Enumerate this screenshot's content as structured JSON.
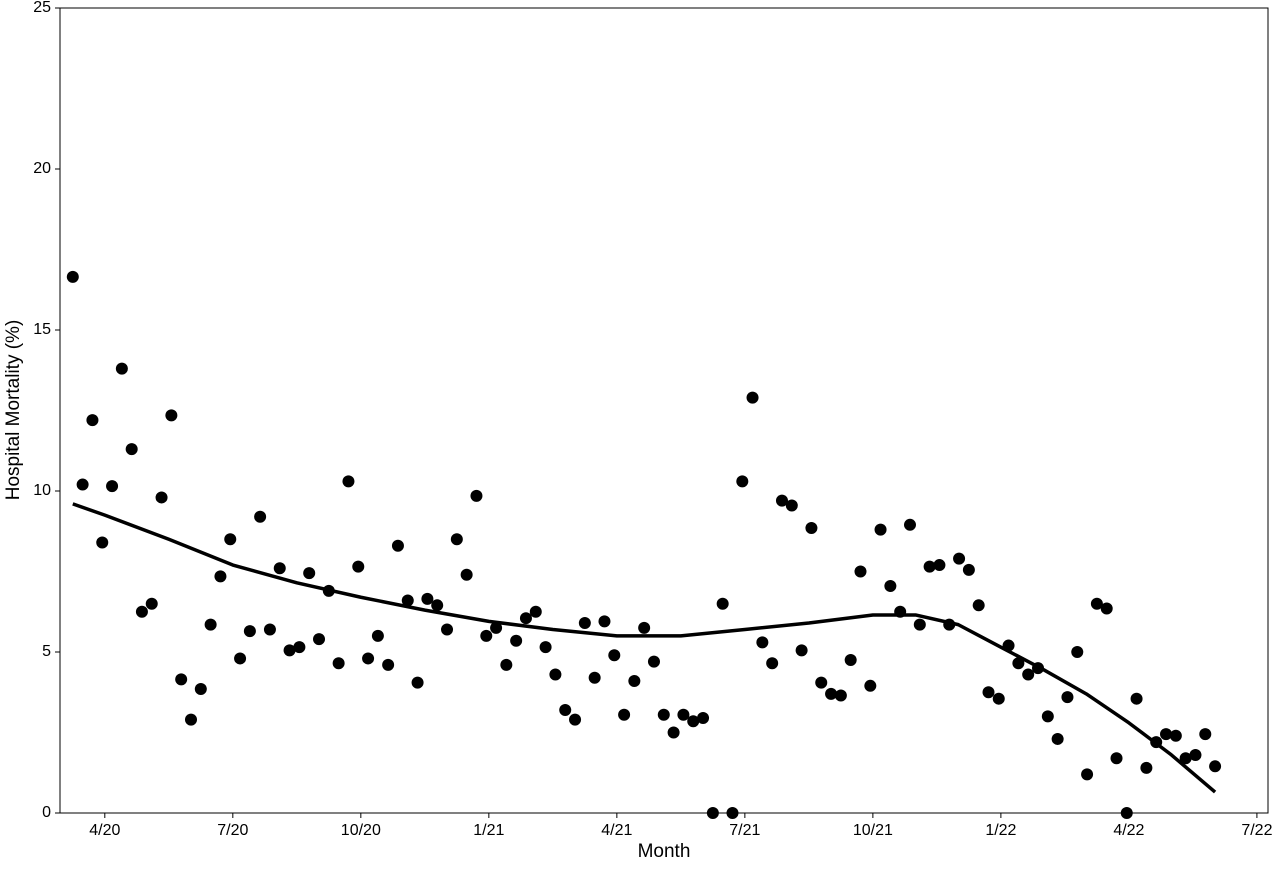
{
  "chart_data": {
    "type": "scatter",
    "xlabel": "Month",
    "ylabel": "Hospital Mortality (%)",
    "xlim": [
      1.95,
      30.26
    ],
    "ylim": [
      0,
      25
    ],
    "xticks": [
      {
        "value": 3,
        "label": "4/20"
      },
      {
        "value": 6,
        "label": "7/20"
      },
      {
        "value": 9,
        "label": "10/20"
      },
      {
        "value": 12,
        "label": "1/21"
      },
      {
        "value": 15,
        "label": "4/21"
      },
      {
        "value": 18,
        "label": "7/21"
      },
      {
        "value": 21,
        "label": "10/21"
      },
      {
        "value": 24,
        "label": "1/22"
      },
      {
        "value": 27,
        "label": "4/22"
      },
      {
        "value": 30,
        "label": "7/22"
      }
    ],
    "yticks": [
      0,
      5,
      10,
      15,
      20,
      25
    ],
    "grid": false,
    "series": [
      {
        "type": "scatter",
        "color": "#000000",
        "x": [
          2.25,
          2.48,
          2.71,
          2.94,
          3.17,
          3.4,
          3.63,
          3.87,
          4.1,
          4.33,
          4.56,
          4.79,
          5.02,
          5.25,
          5.48,
          5.71,
          5.94,
          6.17,
          6.4,
          6.64,
          6.87,
          7.1,
          7.33,
          7.56,
          7.79,
          8.02,
          8.25,
          8.48,
          8.71,
          8.94,
          9.17,
          9.4,
          9.64,
          9.87,
          10.1,
          10.33,
          10.56,
          10.79,
          11.02,
          11.25,
          11.48,
          11.71,
          11.94,
          12.17,
          12.41,
          12.64,
          12.87,
          13.1,
          13.33,
          13.56,
          13.79,
          14.02,
          14.25,
          14.48,
          14.71,
          14.94,
          15.17,
          15.41,
          15.64,
          15.87,
          16.1,
          16.33,
          16.56,
          16.79,
          17.02,
          17.25,
          17.48,
          17.71,
          17.94,
          18.18,
          18.41,
          18.64,
          18.87,
          19.1,
          19.33,
          19.56,
          19.79,
          20.02,
          20.25,
          20.48,
          20.71,
          20.94,
          21.18,
          21.41,
          21.64,
          21.87,
          22.1,
          22.33,
          22.56,
          22.79,
          23.02,
          23.25,
          23.48,
          23.71,
          23.95,
          24.18,
          24.41,
          24.64,
          24.87,
          25.1,
          25.33,
          25.56,
          25.79,
          26.02,
          26.25,
          26.48,
          26.71,
          26.95,
          27.18,
          27.41,
          27.64,
          27.87,
          28.1,
          28.33,
          28.56,
          28.79,
          29.02
        ],
        "values": [
          16.65,
          10.2,
          12.2,
          8.4,
          10.15,
          13.8,
          11.3,
          6.25,
          6.5,
          9.8,
          12.35,
          4.15,
          2.9,
          3.85,
          5.85,
          7.35,
          8.5,
          4.8,
          5.65,
          9.2,
          5.7,
          7.6,
          5.05,
          5.15,
          7.45,
          5.4,
          6.9,
          4.65,
          10.3,
          7.65,
          4.8,
          5.5,
          4.6,
          8.3,
          6.6,
          4.05,
          6.65,
          6.45,
          5.7,
          8.5,
          7.4,
          9.85,
          5.5,
          5.75,
          4.6,
          5.35,
          6.05,
          6.25,
          5.15,
          4.3,
          3.2,
          2.9,
          5.9,
          4.2,
          5.95,
          4.9,
          3.05,
          4.1,
          5.75,
          4.7,
          3.05,
          2.5,
          3.05,
          2.85,
          2.95,
          0,
          6.5,
          0,
          10.3,
          12.9,
          5.3,
          4.65,
          9.7,
          9.55,
          5.05,
          8.85,
          4.05,
          3.7,
          3.65,
          4.75,
          7.5,
          3.95,
          8.8,
          7.05,
          6.25,
          8.95,
          5.85,
          7.65,
          7.7,
          5.85,
          7.9,
          7.55,
          6.45,
          3.75,
          3.55,
          5.2,
          4.65,
          4.3,
          4.5,
          3.0,
          2.3,
          3.6,
          5.0,
          1.2,
          6.5,
          6.35,
          1.7,
          0,
          3.55,
          1.4,
          2.2,
          2.45,
          2.4,
          1.7,
          1.8,
          2.45,
          1.45
        ]
      },
      {
        "type": "line",
        "color": "#000000",
        "x": [
          2.25,
          3,
          4.5,
          6,
          7.5,
          9,
          10.5,
          12,
          13.5,
          15,
          16.5,
          18,
          19.5,
          21,
          22,
          23,
          24,
          25,
          26,
          27,
          28,
          29.02
        ],
        "values": [
          9.6,
          9.25,
          8.5,
          7.7,
          7.15,
          6.7,
          6.3,
          5.95,
          5.7,
          5.5,
          5.5,
          5.7,
          5.9,
          6.15,
          6.15,
          5.85,
          5.15,
          4.45,
          3.7,
          2.8,
          1.8,
          0.65
        ]
      }
    ]
  }
}
